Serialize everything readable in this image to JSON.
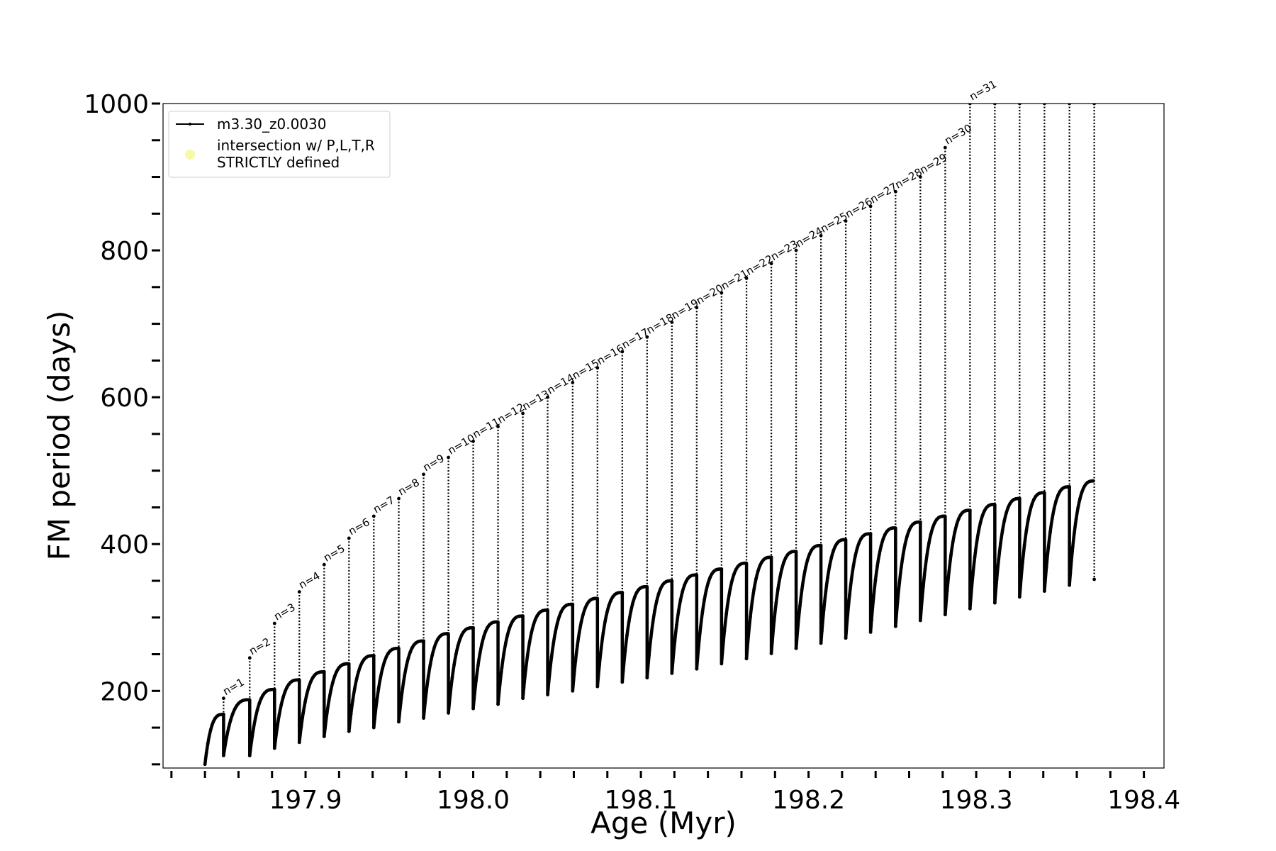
{
  "chart_data": {
    "type": "line",
    "title": "",
    "xlabel": "Age (Myr)",
    "ylabel": "FM period (days)",
    "xlim": [
      197.815,
      198.412
    ],
    "ylim": [
      95,
      1000
    ],
    "xticks_major": [
      "197.9",
      "198.0",
      "198.1",
      "198.2",
      "198.3",
      "198.4"
    ],
    "xticks_major_values": [
      197.9,
      198.0,
      198.1,
      198.2,
      198.3,
      198.4
    ],
    "xticks_minor_step": 0.02,
    "yticks_major": [
      "200",
      "400",
      "600",
      "800",
      "1000"
    ],
    "yticks_major_values": [
      200,
      400,
      600,
      800,
      1000
    ],
    "yticks_minor_step": 50,
    "grid": false,
    "legend": {
      "placement": "top-left",
      "entries": [
        {
          "label": "m3.30_z0.0030",
          "style": "black line with small dot markers",
          "color": "#000000"
        },
        {
          "label": "intersection w/ P,L,T,R\nSTRICTLY defined",
          "style": "pale yellow circle marker",
          "color": "#f7f7a8"
        }
      ]
    },
    "series": [
      {
        "name": "m3.30_z0.0030",
        "color": "#000000",
        "pulses": [
          {
            "label": "n=1",
            "x": 197.8511,
            "y_start": 140,
            "y_peak": 168,
            "y_spike": 190,
            "y_min": 112
          },
          {
            "label": "n=2",
            "x": 197.8667,
            "y_start": 140,
            "y_peak": 188,
            "y_spike": 245,
            "y_min": 112
          },
          {
            "label": "n=3",
            "x": 197.8815,
            "y_start": 152,
            "y_peak": 202,
            "y_spike": 292,
            "y_min": 122
          },
          {
            "label": "n=4",
            "x": 197.8963,
            "y_start": 160,
            "y_peak": 215,
            "y_spike": 335,
            "y_min": 130
          },
          {
            "label": "n=5",
            "x": 197.9111,
            "y_start": 170,
            "y_peak": 226,
            "y_spike": 372,
            "y_min": 138
          },
          {
            "label": "n=6",
            "x": 197.9259,
            "y_start": 178,
            "y_peak": 237,
            "y_spike": 408,
            "y_min": 145
          },
          {
            "label": "n=7",
            "x": 197.9407,
            "y_start": 185,
            "y_peak": 248,
            "y_spike": 438,
            "y_min": 150
          },
          {
            "label": "n=8",
            "x": 197.9556,
            "y_start": 192,
            "y_peak": 258,
            "y_spike": 462,
            "y_min": 158
          },
          {
            "label": "n=9",
            "x": 197.9704,
            "y_start": 200,
            "y_peak": 268,
            "y_spike": 495,
            "y_min": 163
          },
          {
            "label": "n=10",
            "x": 197.9852,
            "y_start": 207,
            "y_peak": 278,
            "y_spike": 518,
            "y_min": 170
          },
          {
            "label": "n=11",
            "x": 198.0,
            "y_start": 214,
            "y_peak": 286,
            "y_spike": 540,
            "y_min": 176
          },
          {
            "label": "n=12",
            "x": 198.0148,
            "y_start": 221,
            "y_peak": 294,
            "y_spike": 560,
            "y_min": 182
          },
          {
            "label": "n=13",
            "x": 198.0296,
            "y_start": 228,
            "y_peak": 302,
            "y_spike": 578,
            "y_min": 190
          },
          {
            "label": "n=14",
            "x": 198.0444,
            "y_start": 235,
            "y_peak": 310,
            "y_spike": 600,
            "y_min": 195
          },
          {
            "label": "n=15",
            "x": 198.0593,
            "y_start": 242,
            "y_peak": 318,
            "y_spike": 620,
            "y_min": 200
          },
          {
            "label": "n=16",
            "x": 198.0741,
            "y_start": 249,
            "y_peak": 326,
            "y_spike": 640,
            "y_min": 206
          },
          {
            "label": "n=17",
            "x": 198.0889,
            "y_start": 256,
            "y_peak": 334,
            "y_spike": 662,
            "y_min": 212
          },
          {
            "label": "n=18",
            "x": 198.1037,
            "y_start": 263,
            "y_peak": 342,
            "y_spike": 682,
            "y_min": 218
          },
          {
            "label": "n=19",
            "x": 198.1185,
            "y_start": 270,
            "y_peak": 350,
            "y_spike": 702,
            "y_min": 224
          },
          {
            "label": "n=20",
            "x": 198.1333,
            "y_start": 277,
            "y_peak": 358,
            "y_spike": 722,
            "y_min": 230
          },
          {
            "label": "n=21",
            "x": 198.1481,
            "y_start": 284,
            "y_peak": 366,
            "y_spike": 742,
            "y_min": 237
          },
          {
            "label": "n=22",
            "x": 198.163,
            "y_start": 291,
            "y_peak": 374,
            "y_spike": 762,
            "y_min": 244
          },
          {
            "label": "n=23",
            "x": 198.1778,
            "y_start": 298,
            "y_peak": 382,
            "y_spike": 782,
            "y_min": 251
          },
          {
            "label": "n=24",
            "x": 198.1926,
            "y_start": 305,
            "y_peak": 390,
            "y_spike": 800,
            "y_min": 258
          },
          {
            "label": "n=25",
            "x": 198.2074,
            "y_start": 312,
            "y_peak": 398,
            "y_spike": 820,
            "y_min": 265
          },
          {
            "label": "n=26",
            "x": 198.2222,
            "y_start": 319,
            "y_peak": 406,
            "y_spike": 840,
            "y_min": 272
          },
          {
            "label": "n=27",
            "x": 198.237,
            "y_start": 326,
            "y_peak": 414,
            "y_spike": 860,
            "y_min": 280
          },
          {
            "label": "n=28",
            "x": 198.2519,
            "y_start": 333,
            "y_peak": 422,
            "y_spike": 880,
            "y_min": 288
          },
          {
            "label": "n=29",
            "x": 198.2667,
            "y_start": 340,
            "y_peak": 430,
            "y_spike": 900,
            "y_min": 296
          },
          {
            "label": "n=30",
            "x": 198.2815,
            "y_start": 347,
            "y_peak": 438,
            "y_spike": 940,
            "y_min": 304
          },
          {
            "label": "n=31",
            "x": 198.2963,
            "y_start": 354,
            "y_peak": 446,
            "y_spike": 1000,
            "y_min": 312
          },
          {
            "label": "",
            "x": 198.3111,
            "y_start": 361,
            "y_peak": 454,
            "y_spike": 1000,
            "y_min": 320
          },
          {
            "label": "",
            "x": 198.3259,
            "y_start": 368,
            "y_peak": 462,
            "y_spike": 1000,
            "y_min": 328
          },
          {
            "label": "",
            "x": 198.3407,
            "y_start": 375,
            "y_peak": 470,
            "y_spike": 1000,
            "y_min": 336
          },
          {
            "label": "",
            "x": 198.3556,
            "y_start": 382,
            "y_peak": 478,
            "y_spike": 1000,
            "y_min": 344
          },
          {
            "label": "",
            "x": 198.3704,
            "y_start": 389,
            "y_peak": 486,
            "y_spike": 1000,
            "y_min": 352
          }
        ]
      }
    ]
  }
}
